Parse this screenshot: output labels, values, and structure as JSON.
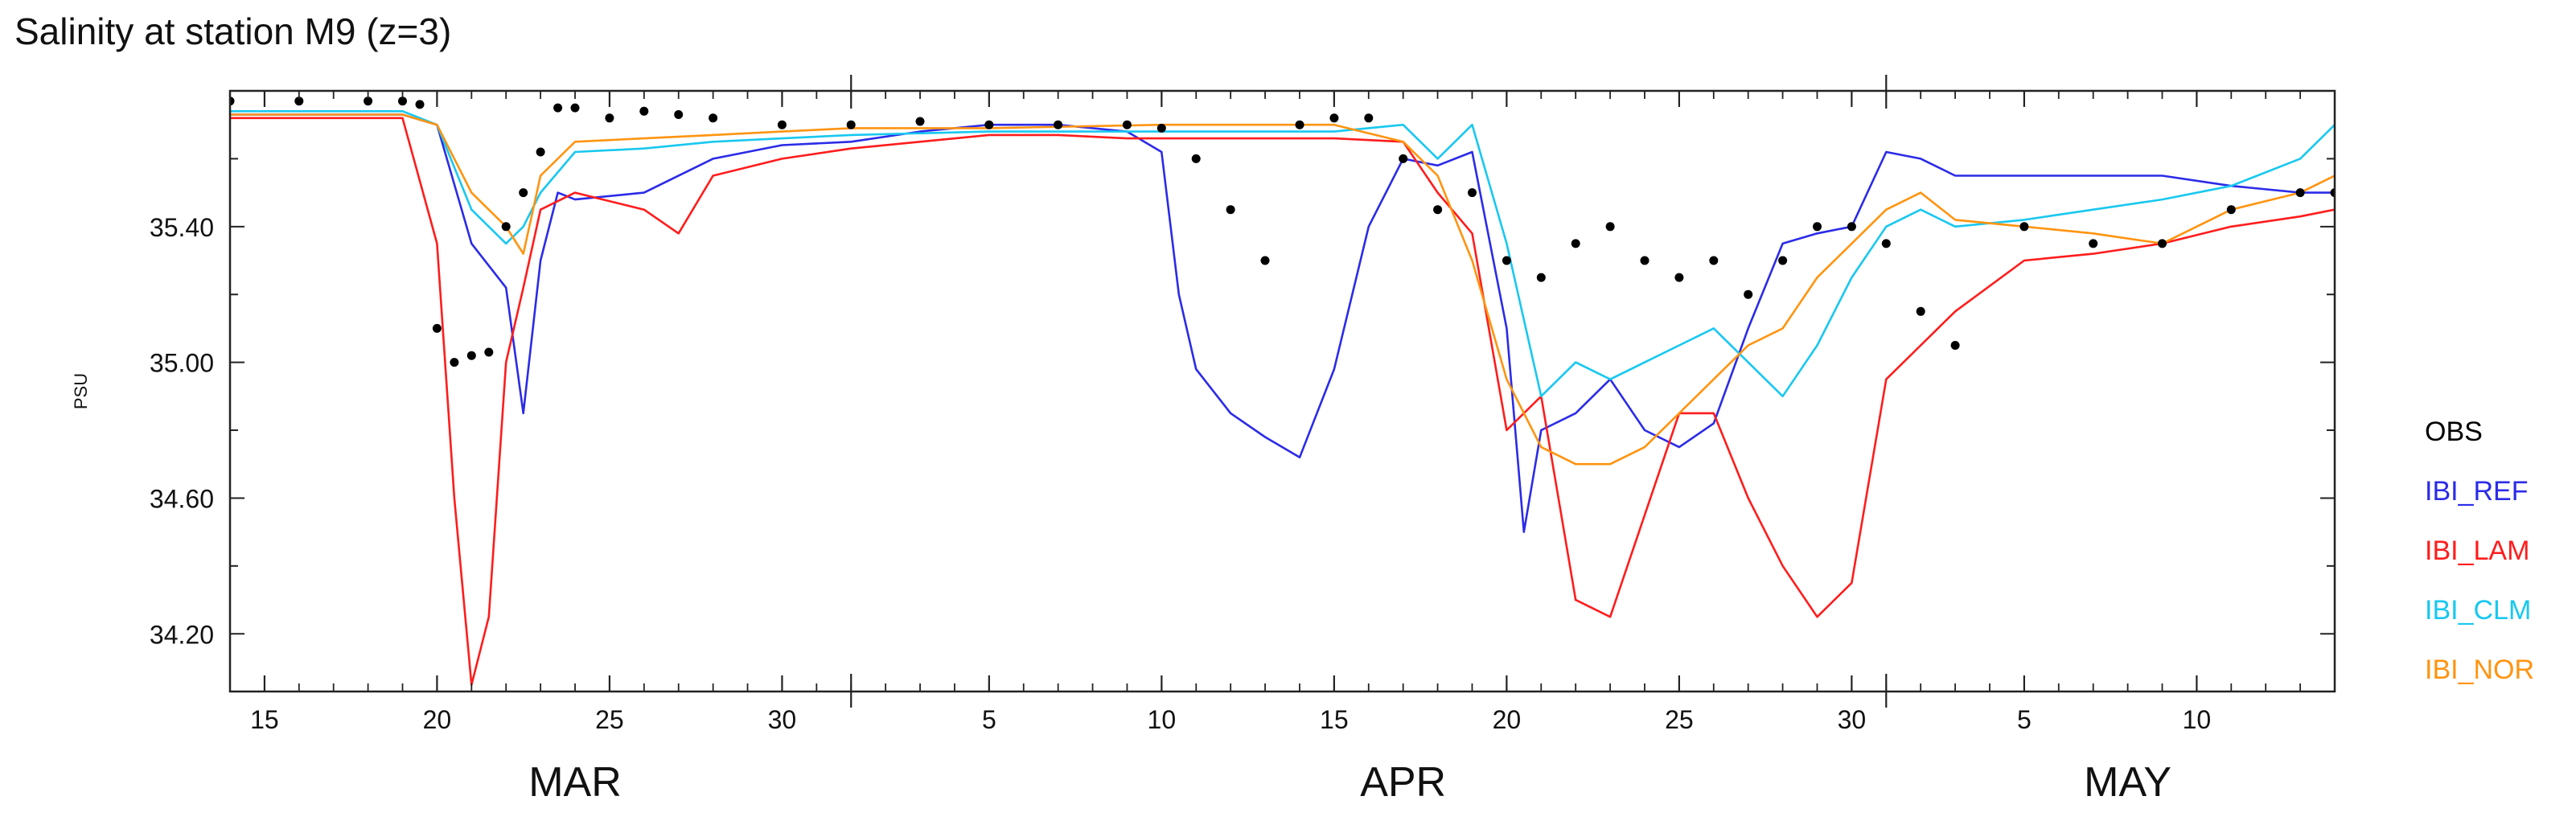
{
  "title": "Salinity at station M9 (z=3)",
  "chart_data": {
    "type": "line",
    "title": "Salinity at station M9 (z=3)",
    "ylabel": "PSU",
    "xlabel": "",
    "x_range": [
      "2019-03-14",
      "2019-05-14"
    ],
    "ylim": [
      34.03,
      35.8
    ],
    "yticks": [
      34.2,
      34.6,
      35.0,
      35.4
    ],
    "ytick_labels": [
      "34.20",
      "34.60",
      "35.00",
      "35.40"
    ],
    "xticks": [
      {
        "date": "2019-03-15",
        "label": "15"
      },
      {
        "date": "2019-03-20",
        "label": "20"
      },
      {
        "date": "2019-03-25",
        "label": "25"
      },
      {
        "date": "2019-03-30",
        "label": "30"
      },
      {
        "date": "2019-04-05",
        "label": "5"
      },
      {
        "date": "2019-04-10",
        "label": "10"
      },
      {
        "date": "2019-04-15",
        "label": "15"
      },
      {
        "date": "2019-04-20",
        "label": "20"
      },
      {
        "date": "2019-04-25",
        "label": "25"
      },
      {
        "date": "2019-04-30",
        "label": "30"
      },
      {
        "date": "2019-05-05",
        "label": "5"
      },
      {
        "date": "2019-05-10",
        "label": "10"
      }
    ],
    "months": [
      {
        "date": "2019-03-24",
        "label": "MAR"
      },
      {
        "date": "2019-04-17",
        "label": "APR"
      },
      {
        "date": "2019-05-08",
        "label": "MAY"
      }
    ],
    "legend_position": "right",
    "grid": false,
    "series": [
      {
        "name": "OBS",
        "color": "#000000",
        "style": "dots",
        "x": [
          "2019-03-14",
          "2019-03-16",
          "2019-03-18",
          "2019-03-19",
          "2019-03-19T12:00",
          "2019-03-20",
          "2019-03-20T12:00",
          "2019-03-21",
          "2019-03-21T12:00",
          "2019-03-22",
          "2019-03-22T12:00",
          "2019-03-23",
          "2019-03-23T12:00",
          "2019-03-24",
          "2019-03-25",
          "2019-03-26",
          "2019-03-27",
          "2019-03-28",
          "2019-03-30",
          "2019-04-01",
          "2019-04-03",
          "2019-04-05",
          "2019-04-07",
          "2019-04-09",
          "2019-04-10",
          "2019-04-11",
          "2019-04-12",
          "2019-04-13",
          "2019-04-14",
          "2019-04-15",
          "2019-04-16",
          "2019-04-17",
          "2019-04-18",
          "2019-04-19",
          "2019-04-20",
          "2019-04-21",
          "2019-04-22",
          "2019-04-23",
          "2019-04-24",
          "2019-04-25",
          "2019-04-26",
          "2019-04-27",
          "2019-04-28",
          "2019-04-29",
          "2019-04-30",
          "2019-05-01",
          "2019-05-02",
          "2019-05-03",
          "2019-05-05",
          "2019-05-07",
          "2019-05-09",
          "2019-05-11",
          "2019-05-13",
          "2019-05-14"
        ],
        "y": [
          35.77,
          35.77,
          35.77,
          35.77,
          35.76,
          35.1,
          35.0,
          35.02,
          35.03,
          35.4,
          35.5,
          35.62,
          35.75,
          35.75,
          35.72,
          35.74,
          35.73,
          35.72,
          35.7,
          35.7,
          35.71,
          35.7,
          35.7,
          35.7,
          35.69,
          35.6,
          35.45,
          35.3,
          35.7,
          35.72,
          35.72,
          35.6,
          35.45,
          35.5,
          35.3,
          35.25,
          35.35,
          35.4,
          35.3,
          35.25,
          35.3,
          35.2,
          35.3,
          35.4,
          35.4,
          35.35,
          35.15,
          35.05,
          35.4,
          35.35,
          35.35,
          35.45,
          35.5,
          35.5
        ]
      },
      {
        "name": "IBI_REF",
        "color": "#2b2be8",
        "style": "line",
        "x": [
          "2019-03-14",
          "2019-03-19",
          "2019-03-20",
          "2019-03-21",
          "2019-03-22",
          "2019-03-22T12:00",
          "2019-03-23",
          "2019-03-23T12:00",
          "2019-03-24",
          "2019-03-26",
          "2019-03-28",
          "2019-03-30",
          "2019-04-01",
          "2019-04-03",
          "2019-04-05",
          "2019-04-07",
          "2019-04-09",
          "2019-04-10",
          "2019-04-10T12:00",
          "2019-04-11",
          "2019-04-12",
          "2019-04-13",
          "2019-04-14",
          "2019-04-15",
          "2019-04-16",
          "2019-04-17",
          "2019-04-18",
          "2019-04-19",
          "2019-04-20",
          "2019-04-20T12:00",
          "2019-04-21",
          "2019-04-22",
          "2019-04-23",
          "2019-04-24",
          "2019-04-25",
          "2019-04-26",
          "2019-04-27",
          "2019-04-28",
          "2019-04-29",
          "2019-04-30",
          "2019-05-01",
          "2019-05-02",
          "2019-05-03",
          "2019-05-05",
          "2019-05-07",
          "2019-05-09",
          "2019-05-11",
          "2019-05-13",
          "2019-05-14"
        ],
        "y": [
          35.73,
          35.73,
          35.7,
          35.35,
          35.22,
          34.85,
          35.3,
          35.5,
          35.48,
          35.5,
          35.6,
          35.64,
          35.65,
          35.68,
          35.7,
          35.7,
          35.68,
          35.62,
          35.2,
          34.98,
          34.85,
          34.78,
          34.72,
          34.98,
          35.4,
          35.6,
          35.58,
          35.62,
          35.1,
          34.5,
          34.8,
          34.85,
          34.95,
          34.8,
          34.75,
          34.82,
          35.1,
          35.35,
          35.38,
          35.4,
          35.62,
          35.6,
          35.55,
          35.55,
          35.55,
          35.55,
          35.52,
          35.5,
          35.5
        ]
      },
      {
        "name": "IBI_LAM",
        "color": "#ff1c1c",
        "style": "line",
        "x": [
          "2019-03-14",
          "2019-03-19",
          "2019-03-20",
          "2019-03-20T12:00",
          "2019-03-21",
          "2019-03-21T12:00",
          "2019-03-22",
          "2019-03-22T12:00",
          "2019-03-23",
          "2019-03-24",
          "2019-03-26",
          "2019-03-27",
          "2019-03-28",
          "2019-03-30",
          "2019-04-01",
          "2019-04-03",
          "2019-04-05",
          "2019-04-07",
          "2019-04-09",
          "2019-04-12",
          "2019-04-15",
          "2019-04-17",
          "2019-04-18",
          "2019-04-19",
          "2019-04-20",
          "2019-04-21",
          "2019-04-22",
          "2019-04-23",
          "2019-04-24",
          "2019-04-25",
          "2019-04-26",
          "2019-04-27",
          "2019-04-28",
          "2019-04-29",
          "2019-04-30",
          "2019-05-01",
          "2019-05-02",
          "2019-05-03",
          "2019-05-05",
          "2019-05-07",
          "2019-05-09",
          "2019-05-11",
          "2019-05-13",
          "2019-05-14"
        ],
        "y": [
          35.72,
          35.72,
          35.35,
          34.6,
          34.05,
          34.25,
          35.0,
          35.22,
          35.45,
          35.5,
          35.45,
          35.38,
          35.55,
          35.6,
          35.63,
          35.65,
          35.67,
          35.67,
          35.66,
          35.66,
          35.66,
          35.65,
          35.5,
          35.38,
          34.8,
          34.9,
          34.3,
          34.25,
          34.55,
          34.85,
          34.85,
          34.6,
          34.4,
          34.25,
          34.35,
          34.95,
          35.05,
          35.15,
          35.3,
          35.32,
          35.35,
          35.4,
          35.43,
          35.45
        ]
      },
      {
        "name": "IBI_CLM",
        "color": "#18c8f0",
        "style": "line",
        "x": [
          "2019-03-14",
          "2019-03-19",
          "2019-03-20",
          "2019-03-21",
          "2019-03-22",
          "2019-03-22T12:00",
          "2019-03-23",
          "2019-03-24",
          "2019-03-26",
          "2019-03-28",
          "2019-03-30",
          "2019-04-01",
          "2019-04-05",
          "2019-04-10",
          "2019-04-15",
          "2019-04-17",
          "2019-04-18",
          "2019-04-19",
          "2019-04-20",
          "2019-04-21",
          "2019-04-22",
          "2019-04-23",
          "2019-04-24",
          "2019-04-25",
          "2019-04-26",
          "2019-04-27",
          "2019-04-28",
          "2019-04-29",
          "2019-04-30",
          "2019-05-01",
          "2019-05-02",
          "2019-05-03",
          "2019-05-05",
          "2019-05-07",
          "2019-05-09",
          "2019-05-11",
          "2019-05-13",
          "2019-05-14"
        ],
        "y": [
          35.74,
          35.74,
          35.7,
          35.45,
          35.35,
          35.4,
          35.5,
          35.62,
          35.63,
          35.65,
          35.66,
          35.67,
          35.68,
          35.68,
          35.68,
          35.7,
          35.6,
          35.7,
          35.35,
          34.9,
          35.0,
          34.95,
          35.0,
          35.05,
          35.1,
          35.0,
          34.9,
          35.05,
          35.25,
          35.4,
          35.45,
          35.4,
          35.42,
          35.45,
          35.48,
          35.52,
          35.6,
          35.7
        ]
      },
      {
        "name": "IBI_NOR",
        "color": "#ff9410",
        "style": "line",
        "x": [
          "2019-03-14",
          "2019-03-19",
          "2019-03-20",
          "2019-03-21",
          "2019-03-22",
          "2019-03-22T12:00",
          "2019-03-23",
          "2019-03-24",
          "2019-03-26",
          "2019-03-28",
          "2019-03-30",
          "2019-04-01",
          "2019-04-05",
          "2019-04-10",
          "2019-04-15",
          "2019-04-17",
          "2019-04-18",
          "2019-04-19",
          "2019-04-20",
          "2019-04-21",
          "2019-04-22",
          "2019-04-23",
          "2019-04-24",
          "2019-04-25",
          "2019-04-26",
          "2019-04-27",
          "2019-04-28",
          "2019-04-29",
          "2019-04-30",
          "2019-05-01",
          "2019-05-02",
          "2019-05-03",
          "2019-05-05",
          "2019-05-07",
          "2019-05-09",
          "2019-05-11",
          "2019-05-13",
          "2019-05-14"
        ],
        "y": [
          35.73,
          35.73,
          35.7,
          35.5,
          35.4,
          35.32,
          35.55,
          35.65,
          35.66,
          35.67,
          35.68,
          35.69,
          35.69,
          35.7,
          35.7,
          35.65,
          35.55,
          35.3,
          34.95,
          34.75,
          34.7,
          34.7,
          34.75,
          34.85,
          34.95,
          35.05,
          35.1,
          35.25,
          35.35,
          35.45,
          35.5,
          35.42,
          35.4,
          35.38,
          35.35,
          35.45,
          35.5,
          35.55
        ]
      }
    ]
  }
}
